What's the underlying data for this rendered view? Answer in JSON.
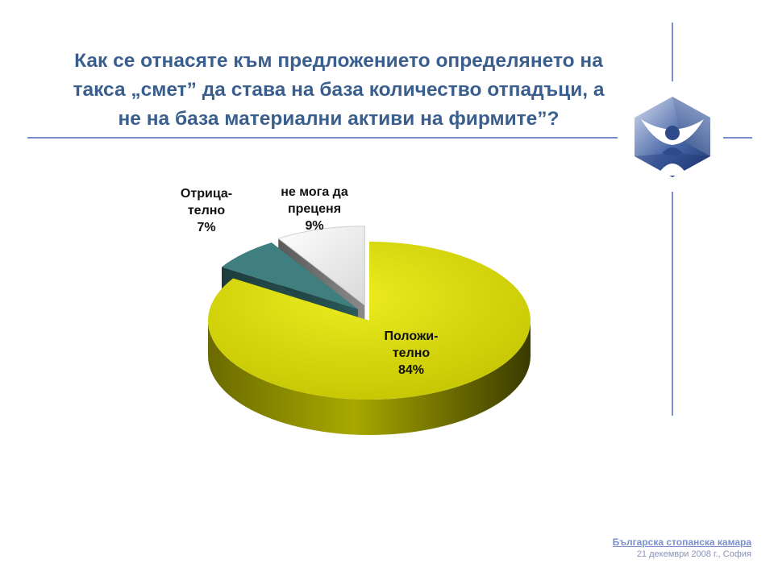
{
  "slide": {
    "title_lines": [
      "Как се отнасяте към предложението определянето на",
      "такса „смет” да става на база количество отпадъци, а",
      "не на база материални активи на фирмите”?"
    ]
  },
  "chart_data": {
    "type": "pie",
    "slices": [
      {
        "label_lines": [
          "Положи-",
          "телно"
        ],
        "value": 84,
        "value_label": "84%",
        "color": "#d8d800"
      },
      {
        "label_lines": [
          "Отрица-",
          "телно"
        ],
        "value": 7,
        "value_label": "7%",
        "color": "#3f7f7f"
      },
      {
        "label_lines": [
          "не мога да",
          "преценя"
        ],
        "value": 9,
        "value_label": "9%",
        "color": "#e8e8e8"
      }
    ]
  },
  "footer": {
    "organization": "Българска стопанска камара",
    "date_place": "21 декември 2008 г., София"
  },
  "logo": {
    "icon": "chamber-logo-icon",
    "color": "#2e4a8a"
  }
}
